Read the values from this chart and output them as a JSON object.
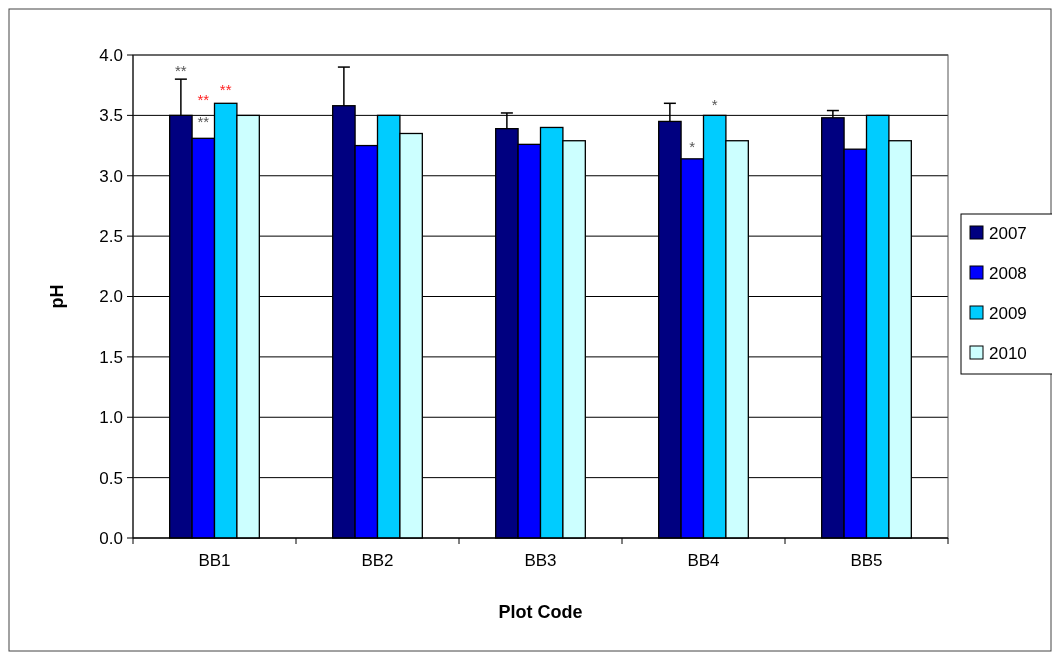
{
  "chart_data": {
    "type": "bar",
    "xlabel": "Plot Code",
    "ylabel": "pH",
    "categories": [
      "BB1",
      "BB2",
      "BB3",
      "BB4",
      "BB5"
    ],
    "series": [
      {
        "name": "2007",
        "color": "#000080",
        "values": [
          3.5,
          3.58,
          3.39,
          3.45,
          3.48
        ],
        "errors": [
          0.3,
          0.32,
          0.13,
          0.15,
          0.06
        ]
      },
      {
        "name": "2008",
        "color": "#0000ff",
        "values": [
          3.31,
          3.25,
          3.26,
          3.14,
          3.22
        ]
      },
      {
        "name": "2009",
        "color": "#00ccff",
        "values": [
          3.6,
          3.5,
          3.4,
          3.5,
          3.5
        ]
      },
      {
        "name": "2010",
        "color": "#ccffff",
        "values": [
          3.5,
          3.35,
          3.29,
          3.29,
          3.29
        ]
      }
    ],
    "ylim": [
      0,
      4
    ],
    "yticks": [
      {
        "value": 0,
        "label": "0.0"
      },
      {
        "value": 0.5,
        "label": "0.5"
      },
      {
        "value": 1,
        "label": "1.0"
      },
      {
        "value": 1.5,
        "label": "1.5"
      },
      {
        "value": 2,
        "label": "2.0"
      },
      {
        "value": 2.5,
        "label": "2.5"
      },
      {
        "value": 3,
        "label": "3.0"
      },
      {
        "value": 3.5,
        "label": "3.5"
      },
      {
        "value": 4,
        "label": "4.0"
      }
    ],
    "grid": "y",
    "legend": "right",
    "annotations": [
      "**",
      "**",
      "**",
      "**",
      "*",
      "*"
    ]
  }
}
